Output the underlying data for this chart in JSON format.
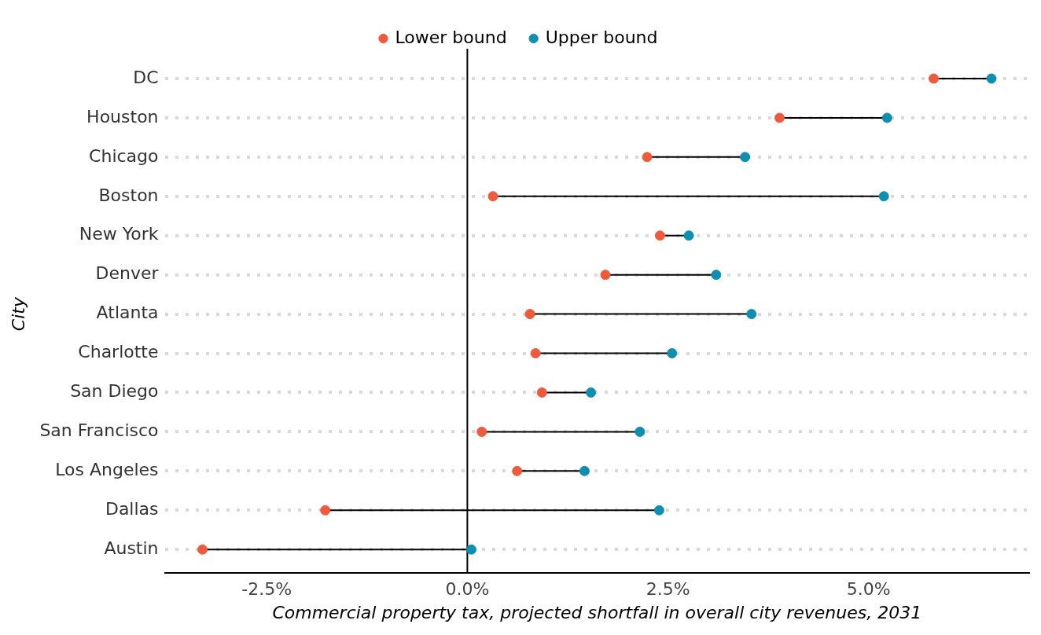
{
  "chart_data": {
    "type": "scatter",
    "orientation": "horizontal",
    "categories": [
      "DC",
      "Houston",
      "Chicago",
      "Boston",
      "New York",
      "Denver",
      "Atlanta",
      "Charlotte",
      "San Diego",
      "San Francisco",
      "Los Angeles",
      "Dallas",
      "Austin"
    ],
    "series": [
      {
        "name": "Lower bound",
        "color": "#f05a3c",
        "values": [
          5.81,
          3.89,
          2.24,
          0.32,
          2.4,
          1.72,
          0.78,
          0.85,
          0.93,
          0.18,
          0.62,
          -1.77,
          -3.3
        ]
      },
      {
        "name": "Upper bound",
        "color": "#0f8fb0",
        "values": [
          6.53,
          5.23,
          3.46,
          5.19,
          2.76,
          3.1,
          3.54,
          2.55,
          1.54,
          2.15,
          1.46,
          2.39,
          0.05
        ]
      }
    ],
    "xlabel": "Commercial property tax, projected shortfall in overall city revenues, 2031",
    "ylabel": "City",
    "xlim": [
      -3.77,
      7.0
    ],
    "xticks": [
      {
        "value": -2.5,
        "label": "-2.5%"
      },
      {
        "value": 0,
        "label": "0.0%"
      },
      {
        "value": 2.5,
        "label": "2.5%"
      },
      {
        "value": 5,
        "label": "5.0%"
      }
    ],
    "ref_lines": [
      {
        "axis": "x",
        "value": 0,
        "color": "#000000"
      }
    ],
    "grid": "y",
    "legend": "top",
    "marker": "circle"
  }
}
